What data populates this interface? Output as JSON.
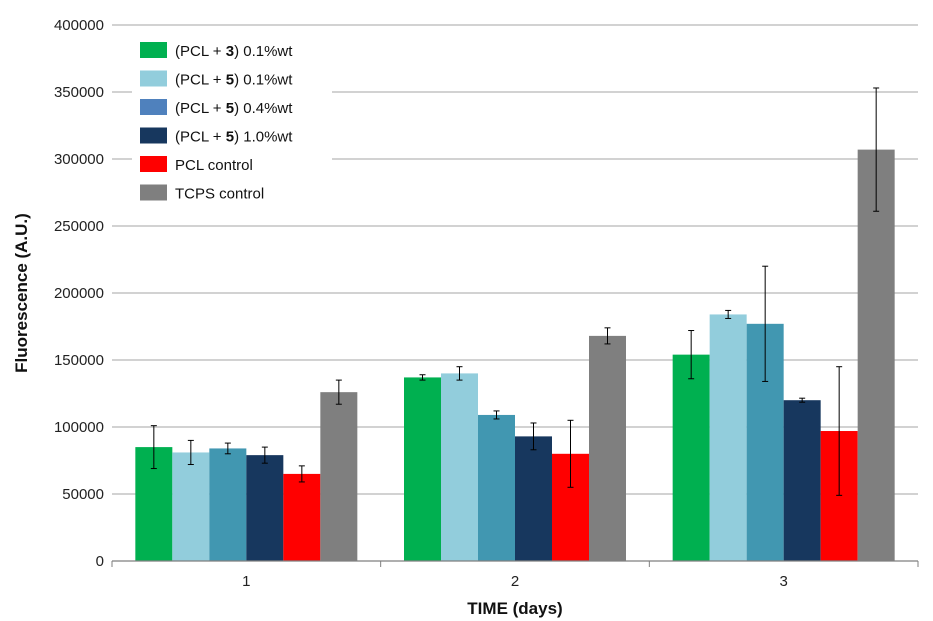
{
  "chart_data": {
    "type": "bar",
    "title": "",
    "xlabel": "TIME (days)",
    "ylabel": "Fluorescence (A.U.)",
    "ylim": [
      0,
      400000
    ],
    "yticks": [
      "0",
      "50000",
      "100000",
      "150000",
      "200000",
      "250000",
      "300000",
      "350000",
      "400000"
    ],
    "categories": [
      "1",
      "2",
      "3"
    ],
    "grid": true,
    "legend_position": "top-left",
    "series": [
      {
        "name": "(PCL + 3) 0.1%wt",
        "legend": {
          "pre": "(PCL + ",
          "num": "3",
          "post": ") 0.1%wt"
        },
        "color": "#00b050",
        "values": [
          85000,
          137000,
          154000
        ],
        "errors": [
          16000,
          2000,
          18000
        ]
      },
      {
        "name": "(PCL + 5) 0.1%wt",
        "legend": {
          "pre": "(PCL + ",
          "num": "5",
          "post": ") 0.1%wt"
        },
        "color": "#92cddc",
        "values": [
          81000,
          140000,
          184000
        ],
        "errors": [
          9000,
          5000,
          3000
        ]
      },
      {
        "name": "(PCL + 5) 0.4%wt",
        "legend": {
          "pre": "(PCL + ",
          "num": "5",
          "post": ") 0.4%wt"
        },
        "color": "#4197b1",
        "legend_color": "#4f81bd",
        "values": [
          84000,
          109000,
          177000
        ],
        "errors": [
          4000,
          3000,
          43000
        ]
      },
      {
        "name": "(PCL + 5) 1.0%wt",
        "legend": {
          "pre": "(PCL + ",
          "num": "5",
          "post": ") 1.0%wt"
        },
        "color": "#17375e",
        "values": [
          79000,
          93000,
          120000
        ],
        "errors": [
          6000,
          10000,
          1500
        ]
      },
      {
        "name": "PCL control",
        "legend": {
          "pre": "PCL control",
          "num": "",
          "post": ""
        },
        "color": "#ff0000",
        "values": [
          65000,
          80000,
          97000
        ],
        "errors": [
          6000,
          25000,
          48000
        ]
      },
      {
        "name": "TCPS control",
        "legend": {
          "pre": "TCPS control",
          "num": "",
          "post": ""
        },
        "color": "#7f7f7f",
        "values": [
          126000,
          168000,
          307000
        ],
        "errors": [
          9000,
          6000,
          46000
        ]
      }
    ]
  }
}
